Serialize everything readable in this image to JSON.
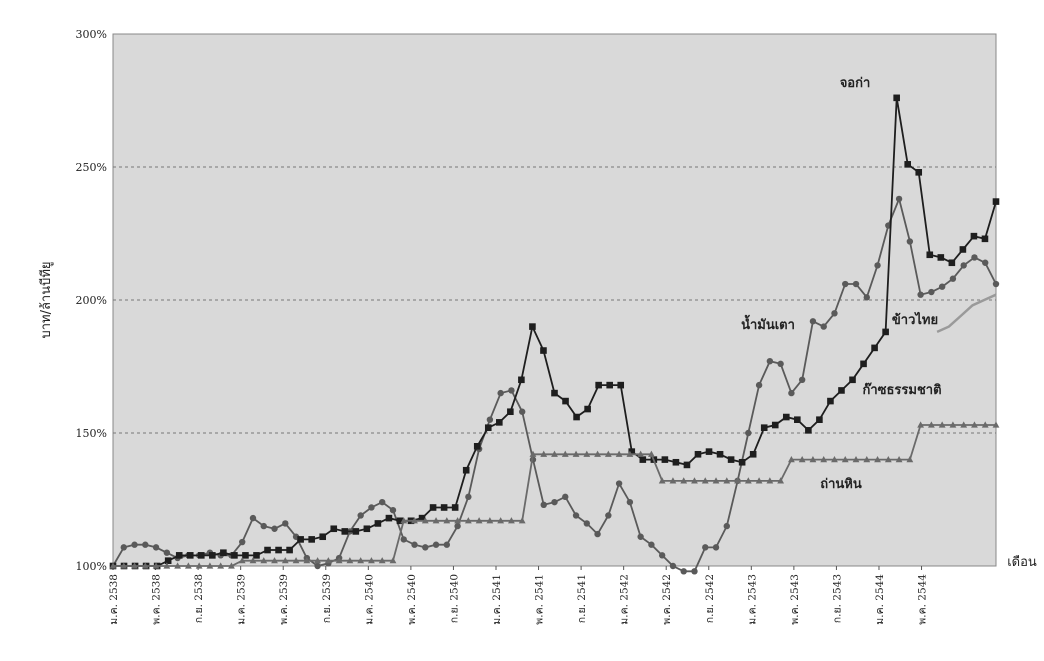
{
  "chart_data": {
    "type": "line",
    "xlabel": "เดือน",
    "ylabel": "บาท/ล้านบีทียู",
    "yticks": [
      "300%",
      "250%",
      "200%",
      "150%",
      "100%"
    ],
    "ylim": [
      100,
      300
    ],
    "grid": "horizontal dashed",
    "x_tick_labels": [
      "ม.ค. 2538",
      "พ.ค. 2538",
      "ก.ย. 2538",
      "ม.ค. 2539",
      "พ.ค. 2539",
      "ก.ย. 2539",
      "ม.ค. 2540",
      "พ.ค. 2540",
      "ก.ย. 2540",
      "ม.ค. 2541",
      "พ.ค. 2541",
      "ก.ย. 2541",
      "ม.ค. 2542",
      "พ.ค. 2542",
      "ก.ย. 2542",
      "ม.ค. 2543",
      "พ.ค. 2543",
      "ก.ย. 2543",
      "ม.ค. 2544",
      "พ.ค. 2544"
    ],
    "series": [
      {
        "name": "น้ำมันเตา",
        "color": "#5a5a5a",
        "marker": "circle",
        "values": [
          100,
          107,
          108,
          108,
          107,
          105,
          103,
          104,
          104,
          105,
          104,
          104,
          109,
          118,
          115,
          114,
          116,
          111,
          103,
          100,
          101,
          103,
          113,
          119,
          122,
          124,
          121,
          110,
          108,
          107,
          108,
          108,
          115,
          126,
          144,
          155,
          165,
          166,
          158,
          140,
          123,
          124,
          126,
          119,
          116,
          112,
          119,
          131,
          124,
          111,
          108,
          104,
          100,
          98,
          98,
          107,
          107,
          115,
          132,
          150,
          168,
          177,
          176,
          165,
          170,
          192,
          190,
          195,
          206,
          206,
          201,
          213,
          228,
          238,
          222,
          202,
          203,
          205,
          208,
          213,
          216,
          214,
          206
        ]
      },
      {
        "name": "จอก่า",
        "color": "#1e1e1e",
        "marker": "square",
        "values": [
          100,
          100,
          100,
          100,
          100,
          102,
          104,
          104,
          104,
          104,
          105,
          104,
          104,
          104,
          106,
          106,
          106,
          110,
          110,
          111,
          114,
          113,
          113,
          114,
          116,
          118,
          117,
          117,
          118,
          122,
          122,
          122,
          136,
          145,
          152,
          154,
          158,
          170,
          190,
          181,
          165,
          162,
          156,
          159,
          168,
          168,
          168,
          143,
          140,
          140,
          140,
          139,
          138,
          142,
          143,
          142,
          140,
          139,
          142,
          152,
          153,
          156,
          155,
          151,
          155,
          162,
          166,
          170,
          176,
          182,
          188,
          276,
          251,
          248,
          217,
          216,
          214,
          219,
          224,
          223,
          237
        ]
      },
      {
        "name": "ก๊าซธรรมชาติ",
        "color": "#6a6a6a",
        "marker": "triangle",
        "values": [
          100,
          100,
          100,
          100,
          100,
          100,
          100,
          100,
          100,
          100,
          100,
          100,
          102,
          102,
          102,
          102,
          102,
          102,
          102,
          102,
          102,
          102,
          102,
          102,
          102,
          102,
          102,
          117,
          117,
          117,
          117,
          117,
          117,
          117,
          117,
          117,
          117,
          117,
          117,
          142,
          142,
          142,
          142,
          142,
          142,
          142,
          142,
          142,
          142,
          142,
          142,
          132,
          132,
          132,
          132,
          132,
          132,
          132,
          132,
          132,
          132,
          132,
          132,
          140,
          140,
          140,
          140,
          140,
          140,
          140,
          140,
          140,
          140,
          140,
          140,
          153,
          153,
          153,
          153,
          153,
          153,
          153,
          153
        ]
      },
      {
        "name": "ข้าวไทย",
        "color": "#9a9a9a",
        "marker": "none",
        "values": [
          null,
          null,
          null,
          null,
          null,
          null,
          null,
          null,
          null,
          null,
          null,
          null,
          null,
          null,
          null,
          null,
          null,
          null,
          null,
          null,
          null,
          null,
          null,
          null,
          null,
          null,
          null,
          null,
          null,
          null,
          null,
          null,
          null,
          null,
          null,
          null,
          null,
          null,
          null,
          null,
          null,
          null,
          null,
          null,
          null,
          null,
          null,
          null,
          null,
          null,
          null,
          null,
          null,
          null,
          null,
          null,
          null,
          null,
          null,
          null,
          null,
          null,
          null,
          null,
          null,
          null,
          null,
          null,
          null,
          null,
          188,
          190,
          194,
          198,
          200,
          202
        ]
      }
    ],
    "annotations": [
      {
        "text": "จอก่า",
        "series": "จอก่า"
      },
      {
        "text": "น้ำมันเตา",
        "series": "น้ำมันเตา"
      },
      {
        "text": "ข้าวไทย",
        "series": "ข้าวไทย"
      },
      {
        "text": "ก๊าซธรรมชาติ",
        "series": "จอก่า"
      },
      {
        "text": "ถ่านหิน",
        "series": "ก๊าซธรรมชาติ"
      }
    ]
  }
}
